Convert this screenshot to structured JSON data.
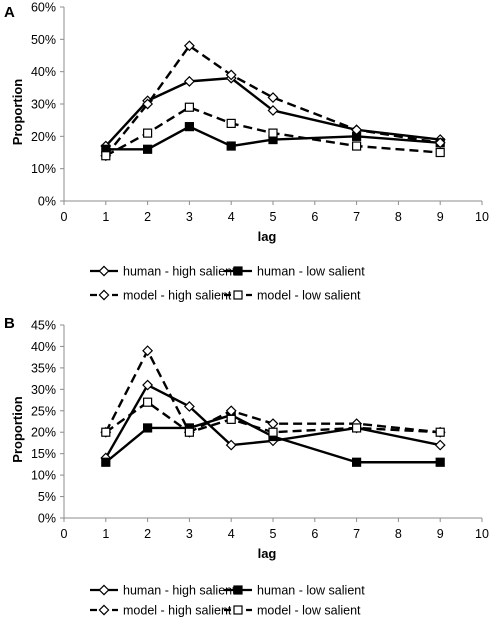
{
  "colors": {
    "line": "#000000",
    "axis": "#8c8c8c",
    "background": "#ffffff"
  },
  "chart_data": [
    {
      "panel_label": "A",
      "type": "line",
      "xlabel": "lag",
      "ylabel": "Proportion",
      "xlim": [
        0,
        10
      ],
      "ylim": [
        0,
        0.6
      ],
      "xticks": [
        "0",
        "1",
        "2",
        "3",
        "4",
        "5",
        "6",
        "7",
        "8",
        "9",
        "10"
      ],
      "yticks": [
        "0%",
        "10%",
        "20%",
        "30%",
        "40%",
        "50%",
        "60%"
      ],
      "grid": false,
      "legend_position": "bottom",
      "x": [
        1,
        2,
        3,
        4,
        5,
        7,
        9
      ],
      "series": [
        {
          "name": "human - high salient",
          "style": "solid",
          "marker": "diamond-open",
          "values": [
            0.17,
            0.31,
            0.37,
            0.38,
            0.28,
            0.22,
            0.19
          ]
        },
        {
          "name": "human - low salient",
          "style": "solid",
          "marker": "square-filled",
          "values": [
            0.16,
            0.16,
            0.23,
            0.17,
            0.19,
            0.2,
            0.18
          ]
        },
        {
          "name": "model - high salient",
          "style": "dashed",
          "marker": "diamond-open",
          "values": [
            0.14,
            0.3,
            0.48,
            0.39,
            0.32,
            0.22,
            0.18
          ]
        },
        {
          "name": "model - low salient",
          "style": "dashed",
          "marker": "square-open",
          "values": [
            0.14,
            0.21,
            0.29,
            0.24,
            0.21,
            0.17,
            0.15
          ]
        }
      ]
    },
    {
      "panel_label": "B",
      "type": "line",
      "xlabel": "lag",
      "ylabel": "Proportion",
      "xlim": [
        0,
        10
      ],
      "ylim": [
        0,
        0.45
      ],
      "xticks": [
        "0",
        "1",
        "2",
        "3",
        "4",
        "5",
        "6",
        "7",
        "8",
        "9",
        "10"
      ],
      "yticks": [
        "0%",
        "5%",
        "10%",
        "15%",
        "20%",
        "25%",
        "30%",
        "35%",
        "40%",
        "45%"
      ],
      "grid": false,
      "legend_position": "bottom",
      "x": [
        1,
        2,
        3,
        4,
        5,
        7,
        9
      ],
      "series": [
        {
          "name": "human - high salient",
          "style": "solid",
          "marker": "diamond-open",
          "values": [
            0.14,
            0.31,
            0.26,
            0.17,
            0.18,
            0.21,
            0.17
          ]
        },
        {
          "name": "human - low salient",
          "style": "solid",
          "marker": "square-filled",
          "values": [
            0.13,
            0.21,
            0.21,
            0.24,
            0.19,
            0.13,
            0.13
          ]
        },
        {
          "name": "model - high salient",
          "style": "dashed",
          "marker": "diamond-open",
          "values": [
            0.2,
            0.39,
            0.2,
            0.25,
            0.22,
            0.22,
            0.2
          ]
        },
        {
          "name": "model - low salient",
          "style": "dashed",
          "marker": "square-open",
          "values": [
            0.2,
            0.27,
            0.2,
            0.23,
            0.2,
            0.21,
            0.2
          ]
        }
      ]
    }
  ]
}
